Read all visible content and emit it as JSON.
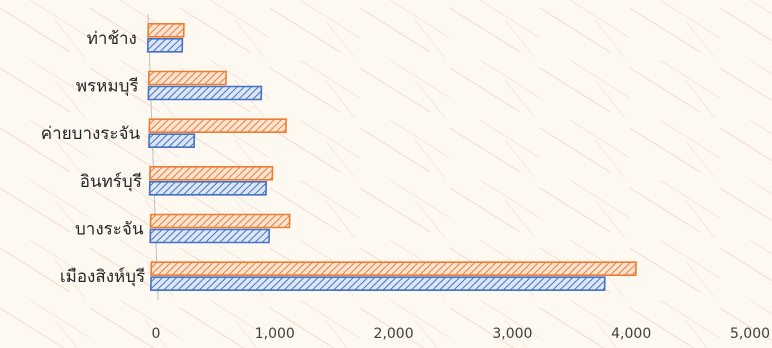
{
  "chart_data": {
    "type": "bar",
    "orientation": "horizontal",
    "categories": [
      "ท่าช้าง",
      "พรหมบุรี",
      "ค่ายบางระจัน",
      "อินทร์บุรี",
      "บางระจัน",
      "เมืองสิงห์บุรี"
    ],
    "series": [
      {
        "values": [
          290,
          950,
          380,
          980,
          1000,
          3820
        ],
        "color": "#4472C4"
      },
      {
        "values": [
          300,
          650,
          1150,
          1030,
          1170,
          4080
        ],
        "color": "#ED7D31"
      }
    ],
    "xlim": [
      0,
      5000
    ],
    "x_ticks": [
      "0",
      "1,000",
      "2,000",
      "3,000",
      "4,000",
      "5,000"
    ],
    "grid": false,
    "legend": "none",
    "background": "#FDF8F0"
  }
}
